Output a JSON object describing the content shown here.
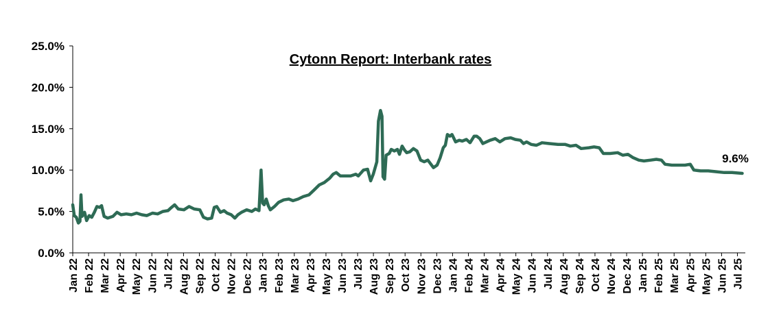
{
  "chart_data": {
    "type": "line",
    "title": "Cytonn Report: Interbank rates",
    "xlabel": "",
    "ylabel": "",
    "ylim": [
      0,
      25
    ],
    "yticks": [
      "0.0%",
      "5.0%",
      "10.0%",
      "15.0%",
      "20.0%",
      "25.0%"
    ],
    "xticks": [
      "Jan 22",
      "Feb 22",
      "Mar 22",
      "Apr 22",
      "May 22",
      "Jun 22",
      "Jul 22",
      "Aug 22",
      "Sep 22",
      "Oct 22",
      "Nov 22",
      "Dec 22",
      "Jan 23",
      "Feb 23",
      "Mar 23",
      "Apr 23",
      "May 23",
      "Jun 23",
      "Jul 23",
      "Aug 23",
      "Sep 23",
      "Oct 23",
      "Nov 23",
      "Dec 23",
      "Jan 24",
      "Feb 24",
      "Mar 24",
      "Apr 24",
      "May 24",
      "Jun 24",
      "Jul 24",
      "Aug 24",
      "Sep 24",
      "Oct 24",
      "Nov 24",
      "Dec 24",
      "Jan 25",
      "Feb 25",
      "Mar 25",
      "Apr 25",
      "May 25",
      "Jun 25",
      "Jul 25"
    ],
    "grid": false,
    "legend": "none",
    "line_color": "#2e6b55",
    "annotation": {
      "text": "9.6%",
      "x": "2025-07-25",
      "y": 9.6
    },
    "series": [
      {
        "points": [
          [
            "2022-01-01",
            5.8
          ],
          [
            "2022-01-04",
            4.5
          ],
          [
            "2022-01-08",
            4.3
          ],
          [
            "2022-01-12",
            3.6
          ],
          [
            "2022-01-15",
            3.8
          ],
          [
            "2022-01-17",
            7.0
          ],
          [
            "2022-01-19",
            4.4
          ],
          [
            "2022-01-24",
            4.9
          ],
          [
            "2022-01-28",
            3.9
          ],
          [
            "2022-02-02",
            4.5
          ],
          [
            "2022-02-07",
            4.3
          ],
          [
            "2022-02-12",
            4.9
          ],
          [
            "2022-02-17",
            5.6
          ],
          [
            "2022-02-22",
            5.5
          ],
          [
            "2022-02-26",
            5.7
          ],
          [
            "2022-03-03",
            4.4
          ],
          [
            "2022-03-10",
            4.2
          ],
          [
            "2022-03-20",
            4.4
          ],
          [
            "2022-03-28",
            4.9
          ],
          [
            "2022-04-05",
            4.6
          ],
          [
            "2022-04-15",
            4.7
          ],
          [
            "2022-04-25",
            4.6
          ],
          [
            "2022-05-05",
            4.8
          ],
          [
            "2022-05-15",
            4.6
          ],
          [
            "2022-05-25",
            4.5
          ],
          [
            "2022-06-05",
            4.8
          ],
          [
            "2022-06-15",
            4.7
          ],
          [
            "2022-06-25",
            5.0
          ],
          [
            "2022-07-05",
            5.1
          ],
          [
            "2022-07-12",
            5.5
          ],
          [
            "2022-07-18",
            5.8
          ],
          [
            "2022-07-25",
            5.3
          ],
          [
            "2022-08-05",
            5.2
          ],
          [
            "2022-08-15",
            5.6
          ],
          [
            "2022-08-25",
            5.3
          ],
          [
            "2022-09-05",
            5.2
          ],
          [
            "2022-09-12",
            4.3
          ],
          [
            "2022-09-20",
            4.1
          ],
          [
            "2022-09-28",
            4.2
          ],
          [
            "2022-10-03",
            5.5
          ],
          [
            "2022-10-08",
            5.6
          ],
          [
            "2022-10-15",
            4.9
          ],
          [
            "2022-10-22",
            5.1
          ],
          [
            "2022-10-28",
            4.8
          ],
          [
            "2022-11-05",
            4.6
          ],
          [
            "2022-11-12",
            4.2
          ],
          [
            "2022-11-18",
            4.6
          ],
          [
            "2022-11-25",
            4.9
          ],
          [
            "2022-12-05",
            5.2
          ],
          [
            "2022-12-15",
            5.0
          ],
          [
            "2022-12-22",
            5.3
          ],
          [
            "2022-12-29",
            5.1
          ],
          [
            "2023-01-02",
            10.0
          ],
          [
            "2023-01-05",
            6.0
          ],
          [
            "2023-01-08",
            5.8
          ],
          [
            "2023-01-12",
            6.5
          ],
          [
            "2023-01-16",
            5.7
          ],
          [
            "2023-01-20",
            5.2
          ],
          [
            "2023-01-28",
            5.6
          ],
          [
            "2023-02-05",
            6.1
          ],
          [
            "2023-02-15",
            6.4
          ],
          [
            "2023-02-25",
            6.5
          ],
          [
            "2023-03-05",
            6.3
          ],
          [
            "2023-03-15",
            6.5
          ],
          [
            "2023-03-25",
            6.8
          ],
          [
            "2023-04-05",
            7.0
          ],
          [
            "2023-04-15",
            7.6
          ],
          [
            "2023-04-25",
            8.2
          ],
          [
            "2023-05-05",
            8.5
          ],
          [
            "2023-05-15",
            9.0
          ],
          [
            "2023-05-22",
            9.5
          ],
          [
            "2023-05-28",
            9.7
          ],
          [
            "2023-06-05",
            9.3
          ],
          [
            "2023-06-15",
            9.3
          ],
          [
            "2023-06-25",
            9.3
          ],
          [
            "2023-07-05",
            9.5
          ],
          [
            "2023-07-10",
            9.3
          ],
          [
            "2023-07-20",
            10.0
          ],
          [
            "2023-07-28",
            10.1
          ],
          [
            "2023-08-03",
            8.7
          ],
          [
            "2023-08-08",
            9.5
          ],
          [
            "2023-08-15",
            11.0
          ],
          [
            "2023-08-18",
            15.9
          ],
          [
            "2023-08-22",
            17.2
          ],
          [
            "2023-08-25",
            16.5
          ],
          [
            "2023-08-27",
            9.2
          ],
          [
            "2023-08-30",
            8.9
          ],
          [
            "2023-09-02",
            11.8
          ],
          [
            "2023-09-08",
            12.0
          ],
          [
            "2023-09-12",
            12.5
          ],
          [
            "2023-09-18",
            12.3
          ],
          [
            "2023-09-24",
            12.5
          ],
          [
            "2023-09-28",
            11.9
          ],
          [
            "2023-10-03",
            12.9
          ],
          [
            "2023-10-08",
            12.4
          ],
          [
            "2023-10-12",
            12.1
          ],
          [
            "2023-10-18",
            12.2
          ],
          [
            "2023-10-25",
            12.6
          ],
          [
            "2023-11-01",
            12.3
          ],
          [
            "2023-11-08",
            11.2
          ],
          [
            "2023-11-15",
            11.0
          ],
          [
            "2023-11-22",
            11.2
          ],
          [
            "2023-11-28",
            10.7
          ],
          [
            "2023-12-03",
            10.3
          ],
          [
            "2023-12-10",
            10.6
          ],
          [
            "2023-12-16",
            11.5
          ],
          [
            "2023-12-22",
            12.7
          ],
          [
            "2023-12-26",
            13.0
          ],
          [
            "2023-12-30",
            14.3
          ],
          [
            "2024-01-04",
            14.1
          ],
          [
            "2024-01-08",
            14.3
          ],
          [
            "2024-01-15",
            13.4
          ],
          [
            "2024-01-22",
            13.6
          ],
          [
            "2024-01-28",
            13.5
          ],
          [
            "2024-02-05",
            13.7
          ],
          [
            "2024-02-12",
            13.3
          ],
          [
            "2024-02-20",
            14.1
          ],
          [
            "2024-02-25",
            14.1
          ],
          [
            "2024-03-02",
            13.8
          ],
          [
            "2024-03-08",
            13.2
          ],
          [
            "2024-03-15",
            13.4
          ],
          [
            "2024-03-22",
            13.6
          ],
          [
            "2024-04-01",
            13.8
          ],
          [
            "2024-04-10",
            13.4
          ],
          [
            "2024-04-20",
            13.8
          ],
          [
            "2024-05-01",
            13.9
          ],
          [
            "2024-05-10",
            13.7
          ],
          [
            "2024-05-20",
            13.6
          ],
          [
            "2024-05-26",
            13.2
          ],
          [
            "2024-06-01",
            13.4
          ],
          [
            "2024-06-10",
            13.1
          ],
          [
            "2024-06-20",
            13.0
          ],
          [
            "2024-07-01",
            13.3
          ],
          [
            "2024-07-15",
            13.2
          ],
          [
            "2024-08-01",
            13.1
          ],
          [
            "2024-08-15",
            13.1
          ],
          [
            "2024-08-25",
            12.9
          ],
          [
            "2024-09-05",
            13.0
          ],
          [
            "2024-09-15",
            12.6
          ],
          [
            "2024-09-30",
            12.7
          ],
          [
            "2024-10-10",
            12.8
          ],
          [
            "2024-10-20",
            12.7
          ],
          [
            "2024-10-28",
            12.0
          ],
          [
            "2024-11-10",
            12.0
          ],
          [
            "2024-11-25",
            12.1
          ],
          [
            "2024-12-05",
            11.8
          ],
          [
            "2024-12-15",
            11.9
          ],
          [
            "2024-12-25",
            11.5
          ],
          [
            "2025-01-05",
            11.2
          ],
          [
            "2025-01-15",
            11.1
          ],
          [
            "2025-01-28",
            11.2
          ],
          [
            "2025-02-08",
            11.3
          ],
          [
            "2025-02-18",
            11.2
          ],
          [
            "2025-02-25",
            10.7
          ],
          [
            "2025-03-10",
            10.6
          ],
          [
            "2025-03-25",
            10.6
          ],
          [
            "2025-04-05",
            10.6
          ],
          [
            "2025-04-15",
            10.7
          ],
          [
            "2025-04-22",
            10.0
          ],
          [
            "2025-05-05",
            9.9
          ],
          [
            "2025-05-20",
            9.9
          ],
          [
            "2025-06-05",
            9.8
          ],
          [
            "2025-06-20",
            9.7
          ],
          [
            "2025-07-05",
            9.7
          ],
          [
            "2025-07-25",
            9.6
          ]
        ]
      }
    ]
  }
}
